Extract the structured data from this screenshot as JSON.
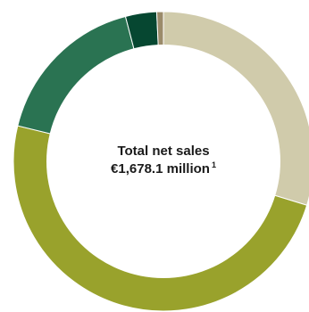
{
  "chart_data": {
    "type": "pie",
    "title": "Total net sales",
    "value_label": "€1,678.1 million",
    "footnote_marker": "1",
    "values": [
      29.2,
      48.2,
      16.8,
      3.3,
      0.7
    ],
    "colors": [
      "#d0cbab",
      "#99a22c",
      "#2a7352",
      "#064731",
      "#9b8b6a"
    ]
  }
}
